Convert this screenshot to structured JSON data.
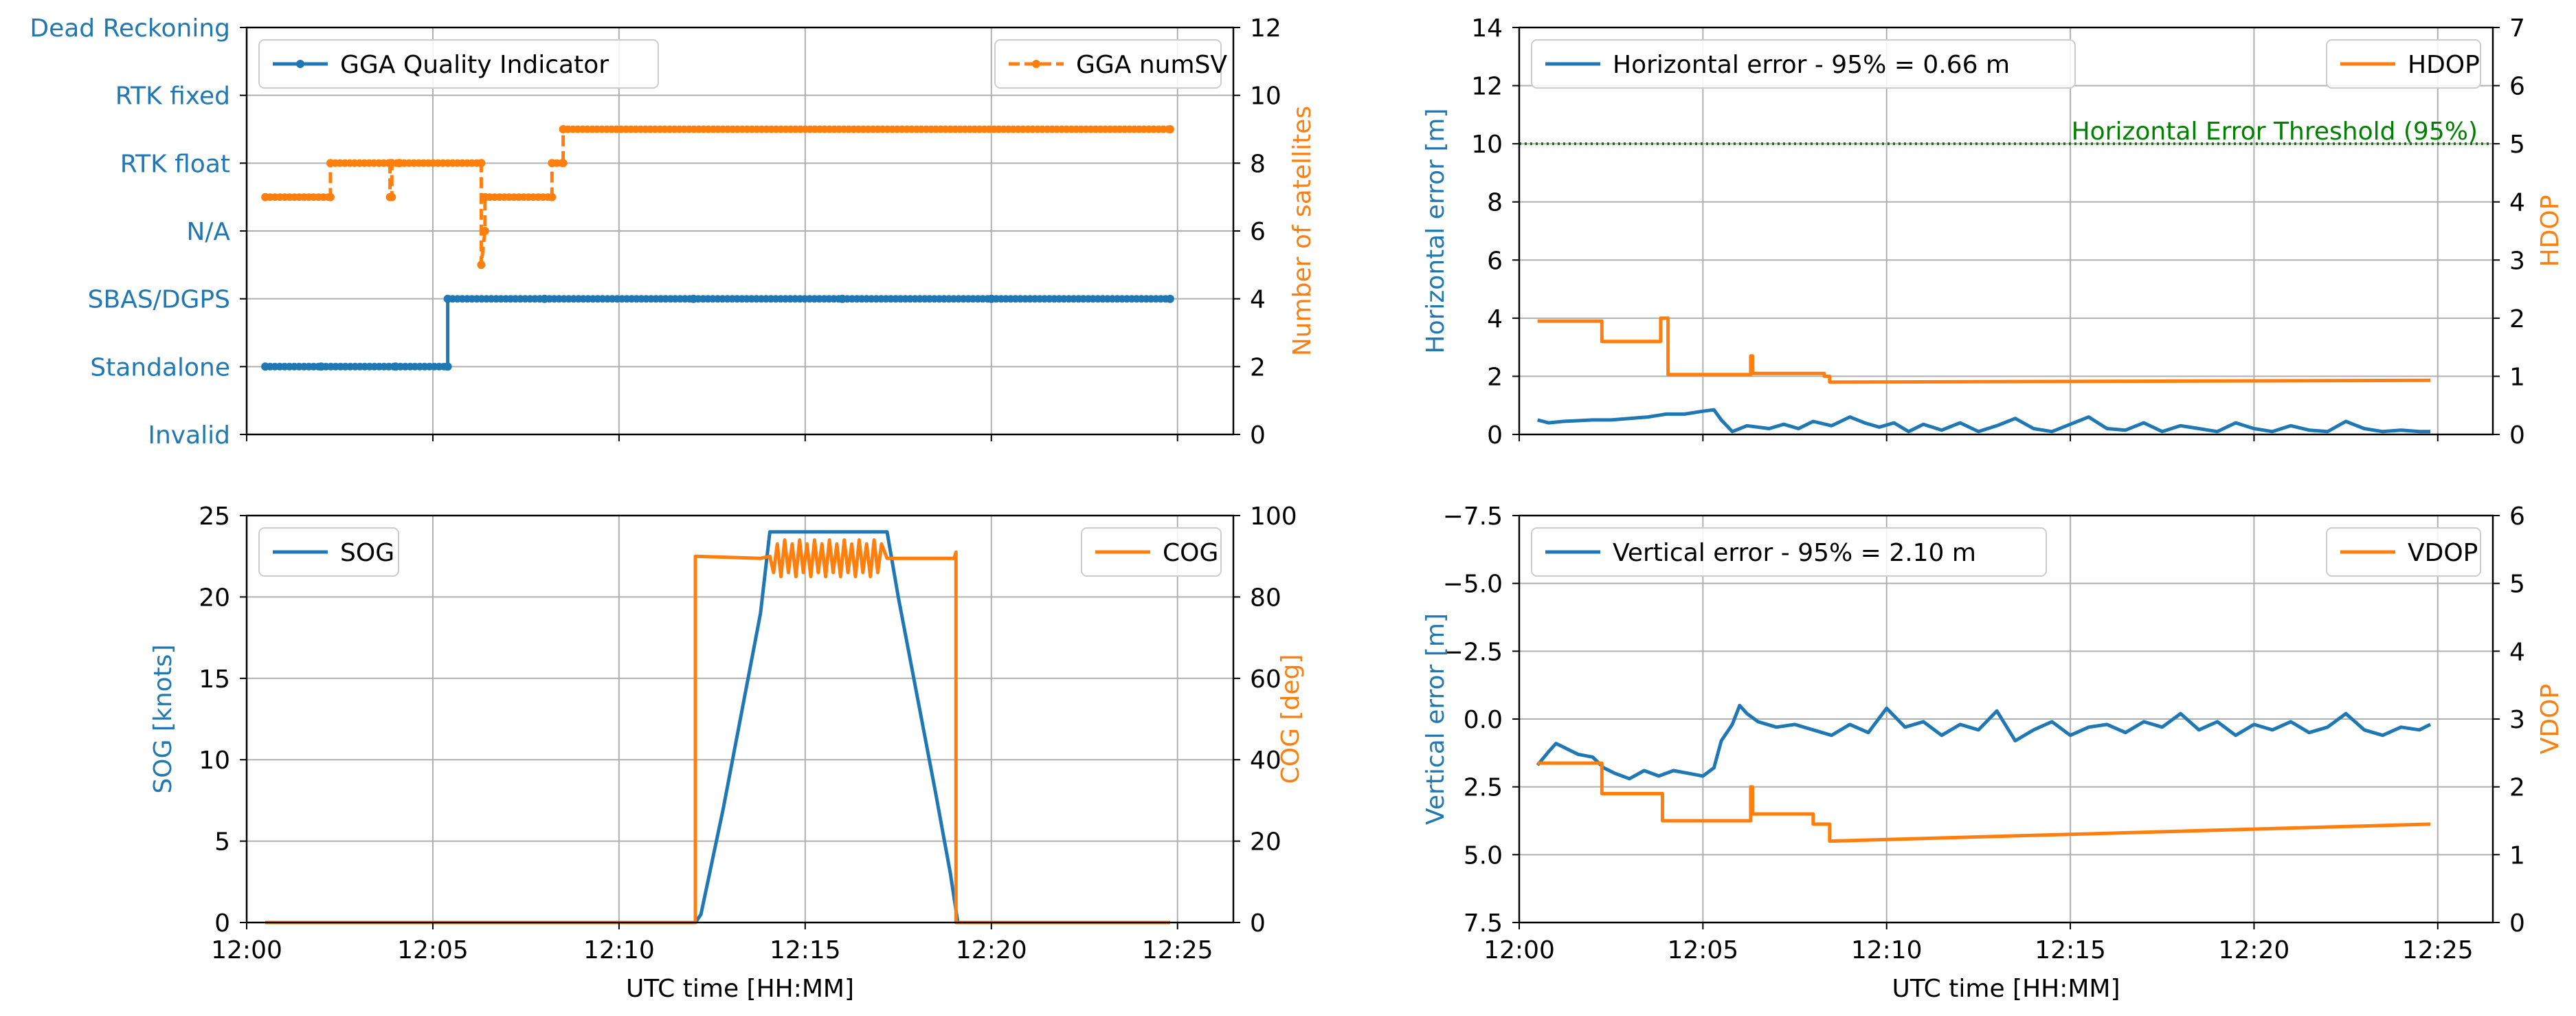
{
  "colors": {
    "blue": "#1f77b4",
    "orange": "#ff7f0e",
    "green": "#008000",
    "grid": "#b0b0b0",
    "axis": "#000000"
  },
  "chart_data": [
    {
      "id": "quality",
      "type": "line",
      "xlabel": "",
      "x_range": [
        0.0,
        26.5
      ],
      "x_ticks": [
        0,
        5,
        10,
        15,
        20,
        25
      ],
      "x_tick_labels": [],
      "left_axis": {
        "label": "",
        "range": [
          0,
          6
        ],
        "ticks": [
          0,
          1,
          2,
          3,
          4,
          5,
          6
        ],
        "tick_labels": [
          "Invalid",
          "Standalone",
          "SBAS/DGPS",
          "N/A",
          "RTK float",
          "RTK fixed",
          "Dead Reckoning"
        ],
        "color": "#1f77b4"
      },
      "right_axis": {
        "label": "Number of satellites",
        "range": [
          0,
          12
        ],
        "ticks": [
          0,
          2,
          4,
          6,
          8,
          10,
          12
        ],
        "tick_labels": [
          "0",
          "2",
          "4",
          "6",
          "8",
          "10",
          "12"
        ],
        "color": "#ff7f0e"
      },
      "legend_left": "GGA Quality Indicator",
      "legend_right": "GGA numSV",
      "series": [
        {
          "name": "GGA Quality Indicator",
          "axis": "left",
          "color": "#1f77b4",
          "style": "solid-markers",
          "x": [
            0.5,
            2.0,
            4.0,
            5.4,
            5.4,
            8.0,
            12.0,
            16.0,
            20.0,
            24.8
          ],
          "y": [
            1,
            1,
            1,
            1,
            2,
            2,
            2,
            2,
            2,
            2
          ]
        },
        {
          "name": "GGA numSV",
          "axis": "right",
          "color": "#ff7f0e",
          "style": "dashed-markers",
          "x": [
            0.5,
            2.25,
            2.25,
            3.85,
            3.85,
            3.9,
            3.9,
            4.1,
            4.1,
            6.3,
            6.3,
            6.4,
            6.4,
            8.2,
            8.2,
            8.5,
            8.5,
            24.8
          ],
          "y": [
            7,
            7,
            8,
            8,
            7,
            7,
            8,
            8,
            8,
            8,
            5,
            6,
            7,
            7,
            8,
            8,
            9,
            9
          ]
        }
      ]
    },
    {
      "id": "horizontal",
      "type": "line",
      "xlabel": "",
      "x_range": [
        0.0,
        26.5
      ],
      "x_ticks": [
        0,
        5,
        10,
        15,
        20,
        25
      ],
      "x_tick_labels": [],
      "left_axis": {
        "label": "Horizontal error [m]",
        "range": [
          0,
          14
        ],
        "ticks": [
          0,
          2,
          4,
          6,
          8,
          10,
          12,
          14
        ],
        "tick_labels": [
          "0",
          "2",
          "4",
          "6",
          "8",
          "10",
          "12",
          "14"
        ],
        "color": "#1f77b4"
      },
      "right_axis": {
        "label": "HDOP",
        "range": [
          0,
          7
        ],
        "ticks": [
          0,
          1,
          2,
          3,
          4,
          5,
          6,
          7
        ],
        "tick_labels": [
          "0",
          "1",
          "2",
          "3",
          "4",
          "5",
          "6",
          "7"
        ],
        "color": "#ff7f0e"
      },
      "legend_left": "Horizontal error - 95% = 0.66 m",
      "legend_right": "HDOP",
      "threshold": {
        "value": 10,
        "label": "Horizontal Error Threshold (95%)",
        "color": "#008000"
      },
      "series": [
        {
          "name": "Horizontal error",
          "axis": "left",
          "color": "#1f77b4",
          "style": "solid",
          "x": [
            0.5,
            0.8,
            1.2,
            2.0,
            2.5,
            3.0,
            3.5,
            4.0,
            4.5,
            5.0,
            5.3,
            5.5,
            5.8,
            6.2,
            6.8,
            7.2,
            7.6,
            8.0,
            8.5,
            9.0,
            9.4,
            9.8,
            10.2,
            10.6,
            11.0,
            11.5,
            12.0,
            12.5,
            13.0,
            13.5,
            14.0,
            14.5,
            15.0,
            15.5,
            16.0,
            16.5,
            17.0,
            17.5,
            18.0,
            18.5,
            19.0,
            19.5,
            20.0,
            20.5,
            21.0,
            21.5,
            22.0,
            22.5,
            23.0,
            23.5,
            24.0,
            24.5,
            24.8
          ],
          "y": [
            0.5,
            0.4,
            0.45,
            0.5,
            0.5,
            0.55,
            0.6,
            0.7,
            0.7,
            0.8,
            0.85,
            0.5,
            0.1,
            0.3,
            0.2,
            0.35,
            0.2,
            0.45,
            0.3,
            0.6,
            0.4,
            0.25,
            0.4,
            0.1,
            0.35,
            0.15,
            0.4,
            0.1,
            0.3,
            0.55,
            0.2,
            0.1,
            0.35,
            0.6,
            0.2,
            0.15,
            0.4,
            0.1,
            0.3,
            0.2,
            0.1,
            0.4,
            0.2,
            0.1,
            0.3,
            0.15,
            0.1,
            0.45,
            0.2,
            0.1,
            0.15,
            0.1,
            0.1
          ]
        },
        {
          "name": "HDOP",
          "axis": "right",
          "color": "#ff7f0e",
          "style": "solid",
          "x": [
            0.5,
            2.25,
            2.25,
            3.85,
            3.85,
            4.05,
            4.05,
            6.3,
            6.3,
            6.35,
            6.35,
            8.3,
            8.3,
            8.45,
            8.45,
            24.8
          ],
          "y": [
            1.95,
            1.95,
            1.6,
            1.6,
            2.0,
            2.0,
            1.03,
            1.03,
            1.35,
            1.35,
            1.05,
            1.05,
            1.0,
            1.0,
            0.9,
            0.93
          ]
        }
      ]
    },
    {
      "id": "sog",
      "type": "line",
      "xlabel": "UTC time [HH:MM]",
      "x_range": [
        0.0,
        26.5
      ],
      "x_ticks": [
        0,
        5,
        10,
        15,
        20,
        25
      ],
      "x_tick_labels": [
        "12:00",
        "12:05",
        "12:10",
        "12:15",
        "12:20",
        "12:25"
      ],
      "left_axis": {
        "label": "SOG [knots]",
        "range": [
          0,
          25
        ],
        "ticks": [
          0,
          5,
          10,
          15,
          20,
          25
        ],
        "tick_labels": [
          "0",
          "5",
          "10",
          "15",
          "20",
          "25"
        ],
        "color": "#1f77b4"
      },
      "right_axis": {
        "label": "COG [deg]",
        "range": [
          0,
          100
        ],
        "ticks": [
          0,
          20,
          40,
          60,
          80,
          100
        ],
        "tick_labels": [
          "0",
          "20",
          "40",
          "60",
          "80",
          "100"
        ],
        "color": "#ff7f0e"
      },
      "legend_left": "SOG",
      "legend_right": "COG",
      "series": [
        {
          "name": "SOG",
          "axis": "left",
          "color": "#1f77b4",
          "style": "solid",
          "x": [
            0.5,
            12.05,
            12.2,
            12.8,
            13.3,
            13.8,
            14.05,
            17.2,
            17.5,
            18.0,
            18.5,
            18.9,
            19.1,
            24.8
          ],
          "y": [
            0,
            0,
            0.5,
            7,
            13,
            19,
            24,
            24,
            20,
            14,
            8,
            3,
            0,
            0
          ]
        },
        {
          "name": "COG",
          "axis": "right",
          "color": "#ff7f0e",
          "style": "solid",
          "x": [
            0.5,
            12.05,
            12.05,
            13.8,
            14.05,
            14.15,
            14.25,
            14.35,
            14.45,
            14.55,
            14.65,
            14.75,
            14.85,
            14.95,
            15.05,
            15.15,
            15.25,
            15.35,
            15.45,
            15.55,
            15.65,
            15.75,
            15.85,
            15.95,
            16.05,
            16.15,
            16.25,
            16.35,
            16.45,
            16.55,
            16.65,
            16.75,
            16.85,
            16.95,
            17.05,
            17.2,
            19.0,
            19.05,
            19.05,
            24.8
          ],
          "y": [
            0,
            0,
            90,
            89.5,
            90,
            86,
            93,
            85,
            94,
            86,
            93,
            85,
            94,
            86,
            93,
            85,
            94,
            86,
            93,
            85,
            94,
            86,
            93,
            85,
            94,
            86,
            93,
            85,
            94,
            86,
            93,
            85,
            94,
            86,
            93,
            89.5,
            89.5,
            91,
            0,
            0
          ]
        }
      ]
    },
    {
      "id": "vertical",
      "type": "line",
      "xlabel": "UTC time [HH:MM]",
      "x_range": [
        0.0,
        26.5
      ],
      "x_ticks": [
        0,
        5,
        10,
        15,
        20,
        25
      ],
      "x_tick_labels": [
        "12:00",
        "12:05",
        "12:10",
        "12:15",
        "12:20",
        "12:25"
      ],
      "left_axis": {
        "label": "Vertical error [m]",
        "range": [
          7.5,
          -7.5
        ],
        "ticks": [
          -7.5,
          -5.0,
          -2.5,
          0.0,
          2.5,
          5.0,
          7.5
        ],
        "tick_labels": [
          "−7.5",
          "−5.0",
          "−2.5",
          "0.0",
          "2.5",
          "5.0",
          "7.5"
        ],
        "color": "#1f77b4"
      },
      "right_axis": {
        "label": "VDOP",
        "range": [
          0,
          6
        ],
        "ticks": [
          0,
          1,
          2,
          3,
          4,
          5,
          6
        ],
        "tick_labels": [
          "0",
          "1",
          "2",
          "3",
          "4",
          "5",
          "6"
        ],
        "color": "#ff7f0e"
      },
      "legend_left": "Vertical error - 95% = 2.10 m",
      "legend_right": "VDOP",
      "series": [
        {
          "name": "Vertical error",
          "axis": "left",
          "color": "#1f77b4",
          "style": "solid",
          "x": [
            0.5,
            0.8,
            1.0,
            1.3,
            1.6,
            2.0,
            2.3,
            2.6,
            3.0,
            3.4,
            3.8,
            4.2,
            4.6,
            5.0,
            5.3,
            5.5,
            5.8,
            6.0,
            6.2,
            6.5,
            7.0,
            7.5,
            8.0,
            8.5,
            9.0,
            9.5,
            10.0,
            10.5,
            11.0,
            11.5,
            12.0,
            12.5,
            13.0,
            13.5,
            14.0,
            14.5,
            15.0,
            15.5,
            16.0,
            16.5,
            17.0,
            17.5,
            18.0,
            18.5,
            19.0,
            19.5,
            20.0,
            20.5,
            21.0,
            21.5,
            22.0,
            22.5,
            23.0,
            23.5,
            24.0,
            24.5,
            24.8
          ],
          "y": [
            1.7,
            1.2,
            0.9,
            1.1,
            1.3,
            1.4,
            1.8,
            2.0,
            2.2,
            1.9,
            2.1,
            1.9,
            2.0,
            2.1,
            1.8,
            0.8,
            0.2,
            -0.5,
            -0.2,
            0.1,
            0.3,
            0.2,
            0.4,
            0.6,
            0.2,
            0.5,
            -0.4,
            0.3,
            0.1,
            0.6,
            0.2,
            0.4,
            -0.3,
            0.8,
            0.4,
            0.1,
            0.6,
            0.3,
            0.2,
            0.5,
            0.1,
            0.3,
            -0.2,
            0.4,
            0.1,
            0.6,
            0.2,
            0.4,
            0.1,
            0.5,
            0.3,
            -0.2,
            0.4,
            0.6,
            0.3,
            0.4,
            0.2
          ]
        },
        {
          "name": "VDOP",
          "axis": "right",
          "color": "#ff7f0e",
          "style": "solid",
          "x": [
            0.5,
            2.25,
            2.25,
            3.9,
            3.9,
            6.3,
            6.3,
            6.35,
            6.35,
            8.0,
            8.0,
            8.45,
            8.45,
            24.8
          ],
          "y": [
            2.35,
            2.35,
            1.9,
            1.9,
            1.5,
            1.5,
            2.0,
            2.0,
            1.6,
            1.6,
            1.45,
            1.45,
            1.2,
            1.45
          ]
        }
      ]
    }
  ]
}
